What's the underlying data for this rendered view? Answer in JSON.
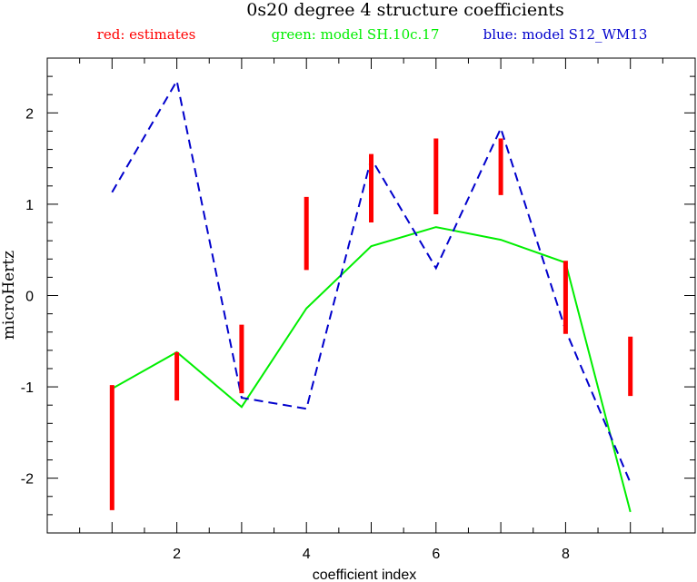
{
  "chart_data": {
    "type": "line",
    "title": "0s20 degree 4 structure coefficients",
    "xlabel": "coefficient index",
    "ylabel": "microHertz",
    "xlim": [
      0,
      10
    ],
    "ylim": [
      -2.6,
      2.6
    ],
    "x_ticks": [
      2,
      4,
      6,
      8
    ],
    "y_ticks": [
      -2,
      -1,
      0,
      1,
      2
    ],
    "legend_placement": "top",
    "legend": [
      {
        "label": "red: estimates",
        "color": "#ff0000"
      },
      {
        "label": "green: model SH.10c.17",
        "color": "#00ee00"
      },
      {
        "label": "blue: model S12_WM13",
        "color": "#0000cc"
      }
    ],
    "error_bars": {
      "name": "estimates",
      "color": "#ff0000",
      "x": [
        1,
        2,
        3,
        4,
        5,
        6,
        7,
        8,
        9
      ],
      "low": [
        -2.35,
        -1.15,
        -1.07,
        0.28,
        0.8,
        0.89,
        1.1,
        -0.42,
        -1.1
      ],
      "high": [
        -0.98,
        -0.62,
        -0.32,
        1.08,
        1.55,
        1.72,
        1.72,
        0.38,
        -0.45
      ]
    },
    "series": [
      {
        "name": "model SH.10c.17",
        "color": "#00ee00",
        "style": "solid",
        "x": [
          1,
          2,
          3,
          4,
          5,
          6,
          7,
          8,
          9
        ],
        "values": [
          -1.02,
          -0.62,
          -1.22,
          -0.14,
          0.54,
          0.75,
          0.61,
          0.36,
          -2.37
        ]
      },
      {
        "name": "model S12_WM13",
        "color": "#0000cc",
        "style": "dashed",
        "x": [
          1,
          2,
          3,
          4,
          5,
          6,
          7,
          8,
          9
        ],
        "values": [
          1.13,
          2.35,
          -1.12,
          -1.24,
          1.5,
          0.3,
          1.83,
          -0.38,
          -2.05
        ]
      }
    ]
  }
}
